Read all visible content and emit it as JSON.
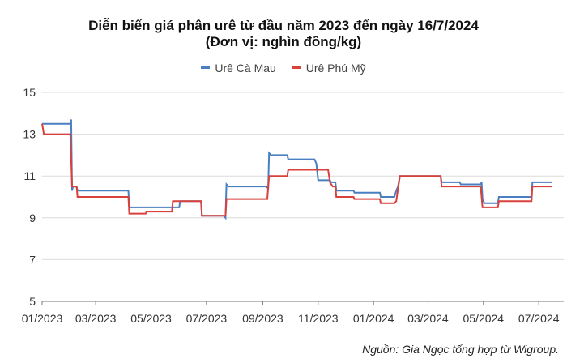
{
  "title": "Diễn biến giá phân urê từ đầu năm 2023 đến ngày 16/7/2024",
  "subtitle": "(Đơn vị: nghìn đồng/kg)",
  "source": "Nguồn: Gia Ngọc tổng hợp từ Wigroup.",
  "chart_data": {
    "type": "line",
    "title": "Diễn biến giá phân urê từ đầu năm 2023 đến ngày 16/7/2024",
    "subtitle": "(Đơn vị: nghìn đồng/kg)",
    "xlabel": "",
    "ylabel": "",
    "ylim": [
      5,
      15
    ],
    "yticks": [
      5,
      7,
      9,
      11,
      13,
      15
    ],
    "xlim": [
      "2023-01-01",
      "2024-07-16"
    ],
    "xticks": [
      {
        "date": "2023-01-01",
        "label": "01/2023"
      },
      {
        "date": "2023-03-01",
        "label": "03/2023"
      },
      {
        "date": "2023-05-01",
        "label": "05/2023"
      },
      {
        "date": "2023-07-01",
        "label": "07/2023"
      },
      {
        "date": "2023-09-01",
        "label": "09/2023"
      },
      {
        "date": "2023-11-01",
        "label": "11/2023"
      },
      {
        "date": "2024-01-01",
        "label": "01/2024"
      },
      {
        "date": "2024-03-01",
        "label": "03/2024"
      },
      {
        "date": "2024-05-01",
        "label": "05/2024"
      },
      {
        "date": "2024-07-01",
        "label": "07/2024"
      }
    ],
    "grid": true,
    "legend_position": "top",
    "series": [
      {
        "name": "Urê Cà Mau",
        "color": "#4a7fc1",
        "points": [
          [
            "2023-01-01",
            13.5
          ],
          [
            "2023-02-01",
            13.5
          ],
          [
            "2023-02-02",
            13.7
          ],
          [
            "2023-02-03",
            10.3
          ],
          [
            "2023-02-04",
            10.5
          ],
          [
            "2023-02-08",
            10.5
          ],
          [
            "2023-02-09",
            10.3
          ],
          [
            "2023-04-06",
            10.3
          ],
          [
            "2023-04-07",
            9.5
          ],
          [
            "2023-06-01",
            9.5
          ],
          [
            "2023-06-02",
            9.8
          ],
          [
            "2023-06-25",
            9.8
          ],
          [
            "2023-06-26",
            9.1
          ],
          [
            "2023-07-20",
            9.1
          ],
          [
            "2023-07-22",
            9.0
          ],
          [
            "2023-07-23",
            10.6
          ],
          [
            "2023-07-25",
            10.5
          ],
          [
            "2023-09-05",
            10.5
          ],
          [
            "2023-09-07",
            10.4
          ],
          [
            "2023-09-08",
            12.1
          ],
          [
            "2023-09-10",
            12.0
          ],
          [
            "2023-09-28",
            12.0
          ],
          [
            "2023-09-29",
            11.8
          ],
          [
            "2023-10-28",
            11.8
          ],
          [
            "2023-10-30",
            11.6
          ],
          [
            "2023-11-01",
            10.8
          ],
          [
            "2023-11-14",
            10.8
          ],
          [
            "2023-11-15",
            10.7
          ],
          [
            "2023-11-20",
            10.7
          ],
          [
            "2023-11-21",
            10.3
          ],
          [
            "2023-12-10",
            10.3
          ],
          [
            "2023-12-11",
            10.2
          ],
          [
            "2024-01-08",
            10.2
          ],
          [
            "2024-01-09",
            10.0
          ],
          [
            "2024-01-24",
            10.0
          ],
          [
            "2024-01-26",
            10.3
          ],
          [
            "2024-01-28",
            10.5
          ],
          [
            "2024-01-30",
            11.0
          ],
          [
            "2024-03-15",
            11.0
          ],
          [
            "2024-03-16",
            10.7
          ],
          [
            "2024-04-05",
            10.7
          ],
          [
            "2024-04-06",
            10.6
          ],
          [
            "2024-04-28",
            10.6
          ],
          [
            "2024-04-29",
            10.7
          ],
          [
            "2024-04-30",
            9.9
          ],
          [
            "2024-05-02",
            9.7
          ],
          [
            "2024-05-17",
            9.7
          ],
          [
            "2024-05-18",
            10.0
          ],
          [
            "2024-06-23",
            10.0
          ],
          [
            "2024-06-24",
            10.7
          ],
          [
            "2024-07-16",
            10.7
          ]
        ]
      },
      {
        "name": "Urê Phú Mỹ",
        "color": "#d9413c",
        "points": [
          [
            "2023-01-01",
            13.5
          ],
          [
            "2023-01-03",
            13.0
          ],
          [
            "2023-02-01",
            13.0
          ],
          [
            "2023-02-03",
            10.5
          ],
          [
            "2023-02-08",
            10.5
          ],
          [
            "2023-02-09",
            10.0
          ],
          [
            "2023-04-06",
            10.0
          ],
          [
            "2023-04-07",
            9.2
          ],
          [
            "2023-04-25",
            9.2
          ],
          [
            "2023-04-26",
            9.3
          ],
          [
            "2023-05-24",
            9.3
          ],
          [
            "2023-05-25",
            9.8
          ],
          [
            "2023-06-25",
            9.8
          ],
          [
            "2023-06-26",
            9.1
          ],
          [
            "2023-07-22",
            9.1
          ],
          [
            "2023-07-23",
            9.9
          ],
          [
            "2023-09-06",
            9.9
          ],
          [
            "2023-09-08",
            11.0
          ],
          [
            "2023-09-28",
            11.0
          ],
          [
            "2023-09-29",
            11.3
          ],
          [
            "2023-11-12",
            11.3
          ],
          [
            "2023-11-14",
            10.7
          ],
          [
            "2023-11-17",
            10.5
          ],
          [
            "2023-11-20",
            10.5
          ],
          [
            "2023-11-21",
            10.0
          ],
          [
            "2023-12-10",
            10.0
          ],
          [
            "2023-12-11",
            9.9
          ],
          [
            "2024-01-08",
            9.9
          ],
          [
            "2024-01-09",
            9.7
          ],
          [
            "2024-01-24",
            9.7
          ],
          [
            "2024-01-26",
            9.8
          ],
          [
            "2024-01-30",
            11.0
          ],
          [
            "2024-03-15",
            11.0
          ],
          [
            "2024-03-16",
            10.5
          ],
          [
            "2024-04-28",
            10.5
          ],
          [
            "2024-04-30",
            9.5
          ],
          [
            "2024-05-17",
            9.5
          ],
          [
            "2024-05-18",
            9.8
          ],
          [
            "2024-06-23",
            9.8
          ],
          [
            "2024-06-24",
            10.5
          ],
          [
            "2024-07-16",
            10.5
          ]
        ]
      }
    ]
  }
}
